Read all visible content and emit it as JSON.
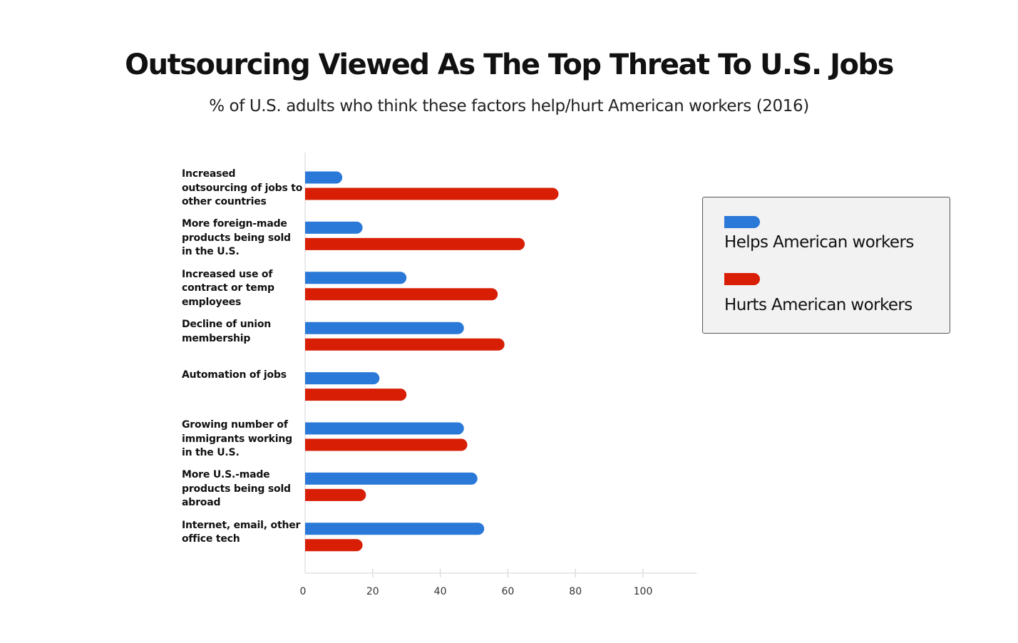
{
  "chart_data": {
    "type": "bar",
    "orientation": "horizontal",
    "title": "Outsourcing Viewed As The Top Threat To U.S. Jobs",
    "subtitle": "% of U.S. adults who think these factors help/hurt American workers (2016)",
    "categories": [
      "Increased outsourcing of jobs to other countries",
      "More foreign-made products being sold in the U.S.",
      "Increased use of contract or temp employees",
      "Decline of union membership",
      "Automation of jobs",
      "Growing number of immigrants working in the U.S.",
      "More U.S.-made products being sold abroad",
      "Internet, email, other office tech"
    ],
    "series": [
      {
        "name": "Helps American workers",
        "color": "#2a78d8",
        "values": [
          11,
          17,
          30,
          47,
          22,
          47,
          51,
          53
        ]
      },
      {
        "name": "Hurts American workers",
        "color": "#d81e05",
        "values": [
          75,
          65,
          57,
          59,
          30,
          48,
          18,
          17
        ]
      }
    ],
    "xlim": [
      0,
      116
    ],
    "xticks": [
      "0",
      "20",
      "40",
      "60",
      "80",
      "100"
    ],
    "xtick_values": [
      0,
      20,
      40,
      60,
      80,
      100
    ],
    "grid": false,
    "legend_placement": "right"
  }
}
